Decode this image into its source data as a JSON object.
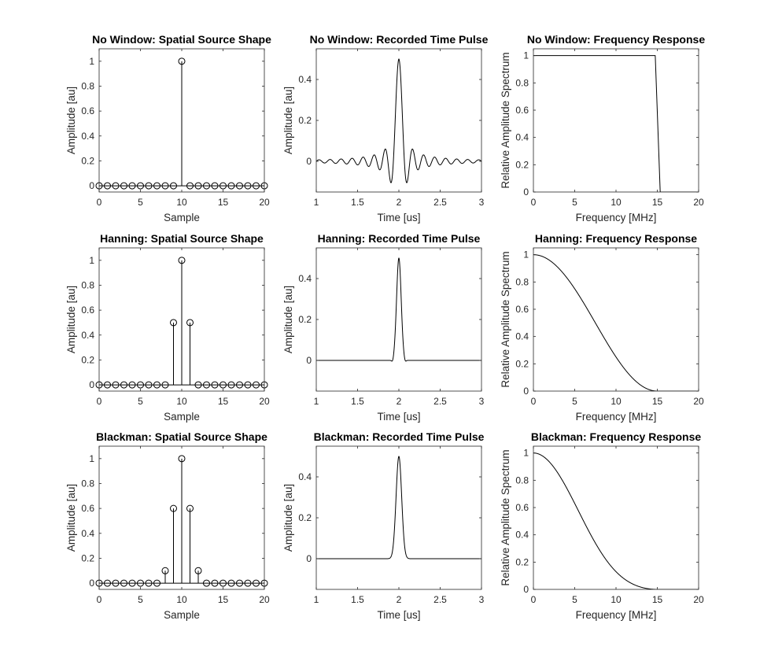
{
  "chart_data": [
    {
      "type": "stem",
      "title": "No Window: Spatial Source Shape",
      "xlabel": "Sample",
      "ylabel": "Amplitude [au]",
      "xlim": [
        0,
        20
      ],
      "ylim": [
        -0.05,
        1.1
      ],
      "xticks": [
        0,
        5,
        10,
        15,
        20
      ],
      "yticks": [
        0,
        0.2,
        0.4,
        0.6,
        0.8,
        1
      ],
      "x": [
        0,
        1,
        2,
        3,
        4,
        5,
        6,
        7,
        8,
        9,
        10,
        11,
        12,
        13,
        14,
        15,
        16,
        17,
        18,
        19,
        20
      ],
      "values": [
        0,
        0,
        0,
        0,
        0,
        0,
        0,
        0,
        0,
        0,
        1,
        0,
        0,
        0,
        0,
        0,
        0,
        0,
        0,
        0,
        0
      ]
    },
    {
      "type": "line",
      "title": "No Window: Recorded Time Pulse",
      "xlabel": "Time [us]",
      "ylabel": "Amplitude [au]",
      "xlim": [
        1,
        3
      ],
      "ylim": [
        -0.15,
        0.55
      ],
      "xticks": [
        1,
        1.5,
        2,
        2.5,
        3
      ],
      "yticks": [
        0,
        0.2,
        0.4
      ],
      "model": "sinc",
      "center": 2,
      "peak": 0.5,
      "bandwidth_mhz": 15
    },
    {
      "type": "line",
      "title": "No Window: Frequency Response",
      "xlabel": "Frequency [MHz]",
      "ylabel": "Relative Amplitude Spectrum",
      "xlim": [
        0,
        20
      ],
      "ylim": [
        0,
        1.05
      ],
      "xticks": [
        0,
        5,
        10,
        15,
        20
      ],
      "yticks": [
        0,
        0.2,
        0.4,
        0.6,
        0.8,
        1
      ],
      "model": "rect",
      "cutoff_mhz": 15
    },
    {
      "type": "stem",
      "title": "Hanning: Spatial Source Shape",
      "xlabel": "Sample",
      "ylabel": "Amplitude [au]",
      "xlim": [
        0,
        20
      ],
      "ylim": [
        -0.05,
        1.1
      ],
      "xticks": [
        0,
        5,
        10,
        15,
        20
      ],
      "yticks": [
        0,
        0.2,
        0.4,
        0.6,
        0.8,
        1
      ],
      "x": [
        0,
        1,
        2,
        3,
        4,
        5,
        6,
        7,
        8,
        9,
        10,
        11,
        12,
        13,
        14,
        15,
        16,
        17,
        18,
        19,
        20
      ],
      "values": [
        0,
        0,
        0,
        0,
        0,
        0,
        0,
        0,
        0,
        0.5,
        1,
        0.5,
        0,
        0,
        0,
        0,
        0,
        0,
        0,
        0,
        0
      ]
    },
    {
      "type": "line",
      "title": "Hanning: Recorded Time Pulse",
      "xlabel": "Time [us]",
      "ylabel": "Amplitude [au]",
      "xlim": [
        1,
        3
      ],
      "ylim": [
        -0.15,
        0.55
      ],
      "xticks": [
        1,
        1.5,
        2,
        2.5,
        3
      ],
      "yticks": [
        0,
        0.2,
        0.4
      ],
      "model": "hann-pulse",
      "center": 2,
      "peak": 0.5,
      "bandwidth_mhz": 15
    },
    {
      "type": "line",
      "title": "Hanning: Frequency Response",
      "xlabel": "Frequency [MHz]",
      "ylabel": "Relative Amplitude Spectrum",
      "xlim": [
        0,
        20
      ],
      "ylim": [
        0,
        1.05
      ],
      "xticks": [
        0,
        5,
        10,
        15,
        20
      ],
      "yticks": [
        0,
        0.2,
        0.4,
        0.6,
        0.8,
        1
      ],
      "model": "hann-spectrum",
      "cutoff_mhz": 15
    },
    {
      "type": "stem",
      "title": "Blackman: Spatial Source Shape",
      "xlabel": "Sample",
      "ylabel": "Amplitude [au]",
      "xlim": [
        0,
        20
      ],
      "ylim": [
        -0.05,
        1.1
      ],
      "xticks": [
        0,
        5,
        10,
        15,
        20
      ],
      "yticks": [
        0,
        0.2,
        0.4,
        0.6,
        0.8,
        1
      ],
      "x": [
        0,
        1,
        2,
        3,
        4,
        5,
        6,
        7,
        8,
        9,
        10,
        11,
        12,
        13,
        14,
        15,
        16,
        17,
        18,
        19,
        20
      ],
      "values": [
        0,
        0,
        0,
        0,
        0,
        0,
        0,
        0,
        0.1,
        0.6,
        1,
        0.6,
        0.1,
        0,
        0,
        0,
        0,
        0,
        0,
        0,
        0
      ]
    },
    {
      "type": "line",
      "title": "Blackman: Recorded Time Pulse",
      "xlabel": "Time [us]",
      "ylabel": "Amplitude [au]",
      "xlim": [
        1,
        3
      ],
      "ylim": [
        -0.15,
        0.55
      ],
      "xticks": [
        1,
        1.5,
        2,
        2.5,
        3
      ],
      "yticks": [
        0,
        0.2,
        0.4
      ],
      "model": "blackman-pulse",
      "center": 2,
      "peak": 0.5,
      "bandwidth_mhz": 15
    },
    {
      "type": "line",
      "title": "Blackman: Frequency Response",
      "xlabel": "Frequency [MHz]",
      "ylabel": "Relative Amplitude Spectrum",
      "xlim": [
        0,
        20
      ],
      "ylim": [
        0,
        1.05
      ],
      "xticks": [
        0,
        5,
        10,
        15,
        20
      ],
      "yticks": [
        0,
        0.2,
        0.4,
        0.6,
        0.8,
        1
      ],
      "model": "blackman-spectrum",
      "cutoff_mhz": 15
    }
  ]
}
